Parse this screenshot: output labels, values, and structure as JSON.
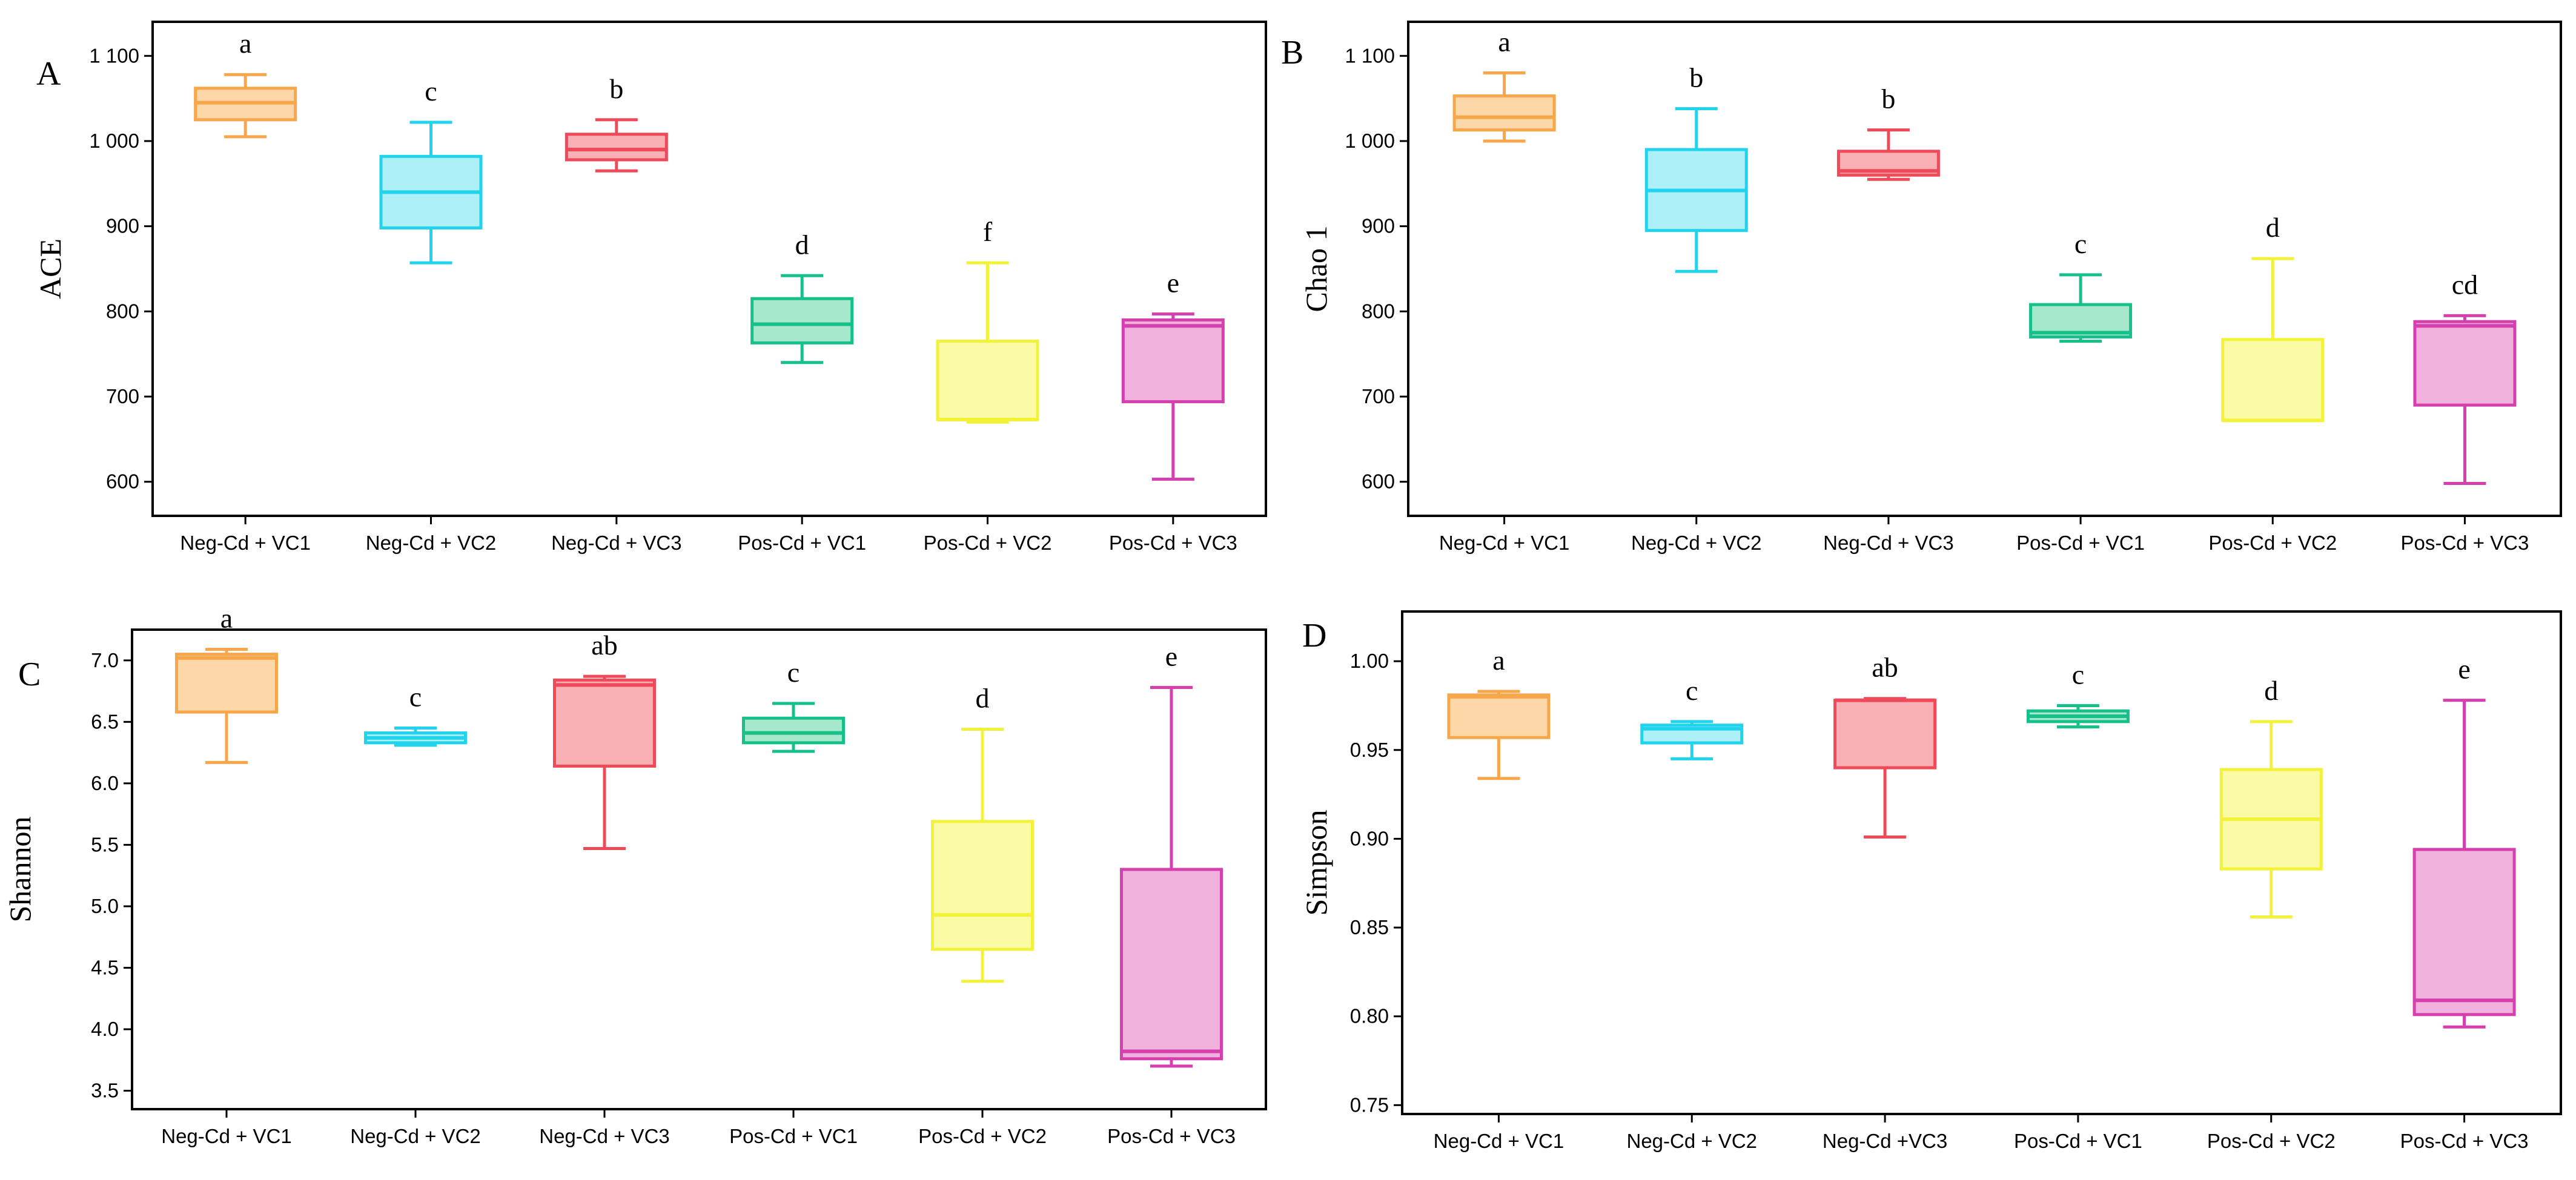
{
  "colors": {
    "Neg-Cd + VC1": {
      "stroke": "#f7a64a",
      "fill": "#fcd7a8"
    },
    "Neg-Cd + VC2": {
      "stroke": "#22d3ee",
      "fill": "#aef0f8"
    },
    "Neg-Cd + VC3": {
      "stroke": "#ef4a5a",
      "fill": "#f9b0b5"
    },
    "Pos-Cd + VC1": {
      "stroke": "#17c08a",
      "fill": "#a6e8cc"
    },
    "Pos-Cd + VC2": {
      "stroke": "#f2f23a",
      "fill": "#fbfba6"
    },
    "Pos-Cd + VC3": {
      "stroke": "#d63fae",
      "fill": "#f0b2dc"
    }
  },
  "chart_data": [
    {
      "type": "box",
      "panel": "A",
      "ylabel": "ACE",
      "ylim": [
        560,
        1140
      ],
      "yticks": [
        600,
        700,
        800,
        900,
        1000,
        1100
      ],
      "ytick_labels": [
        "600",
        "700",
        "800",
        "900",
        "1 000",
        "1 100"
      ],
      "categories": [
        "Neg-Cd + VC1",
        "Neg-Cd + VC2",
        "Neg-Cd + VC3",
        "Pos-Cd + VC1",
        "Pos-Cd + VC2",
        "Pos-Cd + VC3"
      ],
      "boxes": [
        {
          "min": 1005,
          "q1": 1025,
          "median": 1045,
          "q3": 1062,
          "max": 1078,
          "letter": "a"
        },
        {
          "min": 857,
          "q1": 898,
          "median": 940,
          "q3": 982,
          "max": 1022,
          "letter": "c"
        },
        {
          "min": 965,
          "q1": 978,
          "median": 990,
          "q3": 1008,
          "max": 1025,
          "letter": "b"
        },
        {
          "min": 740,
          "q1": 763,
          "median": 785,
          "q3": 815,
          "max": 842,
          "letter": "d"
        },
        {
          "min": 670,
          "q1": 673,
          "median": 673,
          "q3": 765,
          "max": 857,
          "letter": "f"
        },
        {
          "min": 603,
          "q1": 694,
          "median": 783,
          "q3": 790,
          "max": 797,
          "letter": "e"
        }
      ]
    },
    {
      "type": "box",
      "panel": "B",
      "ylabel": "Chao 1",
      "ylim": [
        560,
        1140
      ],
      "yticks": [
        600,
        700,
        800,
        900,
        1000,
        1100
      ],
      "ytick_labels": [
        "600",
        "700",
        "800",
        "900",
        "1 000",
        "1 100"
      ],
      "categories": [
        "Neg-Cd + VC1",
        "Neg-Cd + VC2",
        "Neg-Cd + VC3",
        "Pos-Cd + VC1",
        "Pos-Cd + VC2",
        "Pos-Cd + VC3"
      ],
      "boxes": [
        {
          "min": 1000,
          "q1": 1013,
          "median": 1028,
          "q3": 1053,
          "max": 1080,
          "letter": "a"
        },
        {
          "min": 847,
          "q1": 895,
          "median": 942,
          "q3": 990,
          "max": 1038,
          "letter": "b"
        },
        {
          "min": 955,
          "q1": 960,
          "median": 965,
          "q3": 988,
          "max": 1013,
          "letter": "b"
        },
        {
          "min": 765,
          "q1": 770,
          "median": 775,
          "q3": 808,
          "max": 843,
          "letter": "c"
        },
        {
          "min": 672,
          "q1": 672,
          "median": 672,
          "q3": 767,
          "max": 862,
          "letter": "d"
        },
        {
          "min": 598,
          "q1": 690,
          "median": 783,
          "q3": 788,
          "max": 795,
          "letter": "cd"
        }
      ]
    },
    {
      "type": "box",
      "panel": "C",
      "ylabel": "Shannon",
      "ylim": [
        3.35,
        7.25
      ],
      "yticks": [
        3.5,
        4.0,
        4.5,
        5.0,
        5.5,
        6.0,
        6.5,
        7.0
      ],
      "ytick_labels": [
        "3.5",
        "4.0",
        "4.5",
        "5.0",
        "5.5",
        "6.0",
        "6.5",
        "7.0"
      ],
      "categories": [
        "Neg-Cd + VC1",
        "Neg-Cd + VC2",
        "Neg-Cd + VC3",
        "Pos-Cd + VC1",
        "Pos-Cd + VC2",
        "Pos-Cd + VC3"
      ],
      "boxes": [
        {
          "min": 6.17,
          "q1": 6.58,
          "median": 7.02,
          "q3": 7.05,
          "max": 7.09,
          "letter": "a"
        },
        {
          "min": 6.31,
          "q1": 6.33,
          "median": 6.37,
          "q3": 6.41,
          "max": 6.45,
          "letter": "c"
        },
        {
          "min": 5.47,
          "q1": 6.14,
          "median": 6.8,
          "q3": 6.84,
          "max": 6.87,
          "letter": "ab"
        },
        {
          "min": 6.26,
          "q1": 6.33,
          "median": 6.41,
          "q3": 6.53,
          "max": 6.65,
          "letter": "c"
        },
        {
          "min": 4.39,
          "q1": 4.65,
          "median": 4.93,
          "q3": 5.69,
          "max": 6.44,
          "letter": "d"
        },
        {
          "min": 3.7,
          "q1": 3.76,
          "median": 3.82,
          "q3": 5.3,
          "max": 6.78,
          "letter": "e"
        }
      ]
    },
    {
      "type": "box",
      "panel": "D",
      "ylabel": "Simpson",
      "ylim": [
        0.745,
        1.028
      ],
      "yticks": [
        0.75,
        0.8,
        0.85,
        0.9,
        0.95,
        1.0
      ],
      "ytick_labels": [
        "0.75",
        "0.80",
        "0.85",
        "0.90",
        "0.95",
        "1.00"
      ],
      "categories": [
        "Neg-Cd + VC1",
        "Neg-Cd + VC2",
        "Neg-Cd +VC3",
        "Pos-Cd + VC1",
        "Pos-Cd + VC2",
        "Pos-Cd + VC3"
      ],
      "boxes": [
        {
          "min": 0.934,
          "q1": 0.957,
          "median": 0.98,
          "q3": 0.981,
          "max": 0.983,
          "letter": "a"
        },
        {
          "min": 0.945,
          "q1": 0.954,
          "median": 0.962,
          "q3": 0.964,
          "max": 0.966,
          "letter": "c"
        },
        {
          "min": 0.901,
          "q1": 0.94,
          "median": 0.978,
          "q3": 0.978,
          "max": 0.979,
          "letter": "ab"
        },
        {
          "min": 0.963,
          "q1": 0.966,
          "median": 0.969,
          "q3": 0.972,
          "max": 0.975,
          "letter": "c"
        },
        {
          "min": 0.856,
          "q1": 0.883,
          "median": 0.911,
          "q3": 0.939,
          "max": 0.966,
          "letter": "d"
        },
        {
          "min": 0.794,
          "q1": 0.801,
          "median": 0.809,
          "q3": 0.894,
          "max": 0.978,
          "letter": "e"
        }
      ]
    }
  ]
}
